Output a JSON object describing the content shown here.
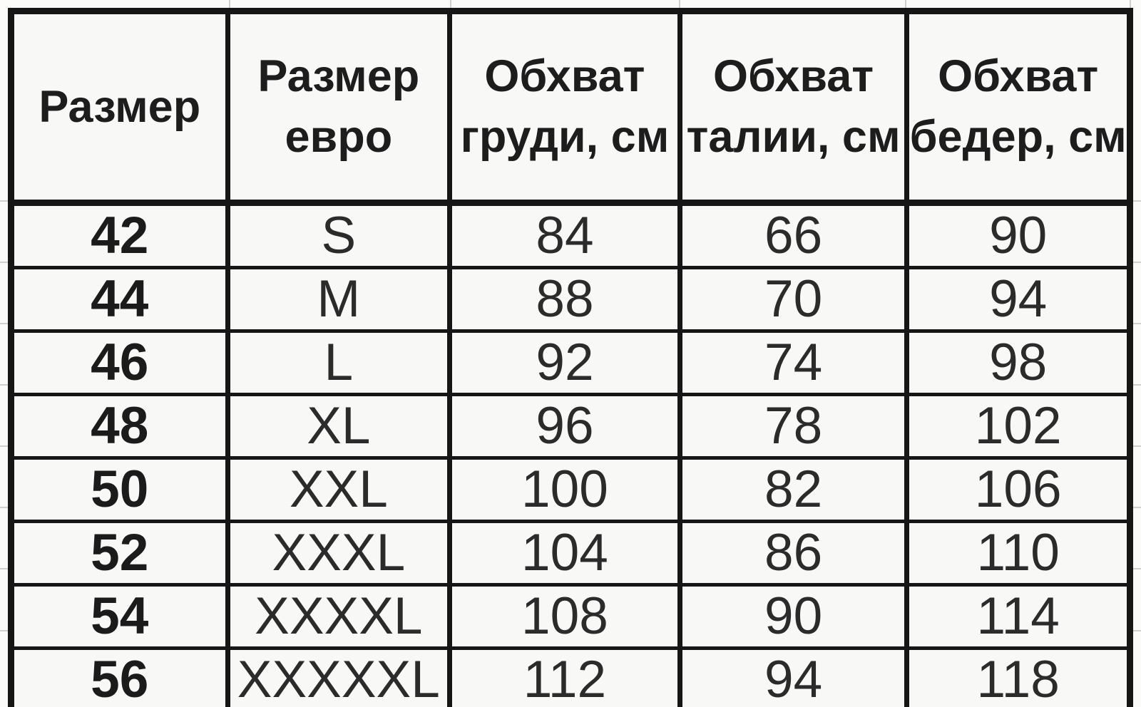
{
  "colors": {
    "table_border": "#161616",
    "cell_background": "#f8f8f6",
    "page_background": "#fbfbf9",
    "text": "#2b2b2b",
    "faint_gridline": "#ced1ce"
  },
  "chart_data": {
    "type": "table",
    "title": "",
    "columns": [
      "Размер",
      "Размер евро",
      "Обхват груди, см",
      "Обхват талии, см",
      "Обхват бедер, см"
    ],
    "rows": [
      [
        "42",
        "S",
        "84",
        "66",
        "90"
      ],
      [
        "44",
        "M",
        "88",
        "70",
        "94"
      ],
      [
        "46",
        "L",
        "92",
        "74",
        "98"
      ],
      [
        "48",
        "XL",
        "96",
        "78",
        "102"
      ],
      [
        "50",
        "XXL",
        "100",
        "82",
        "106"
      ],
      [
        "52",
        "XXXL",
        "104",
        "86",
        "110"
      ],
      [
        "54",
        "XXXXL",
        "108",
        "90",
        "114"
      ],
      [
        "56",
        "XXXXXL",
        "112",
        "94",
        "118"
      ]
    ]
  }
}
